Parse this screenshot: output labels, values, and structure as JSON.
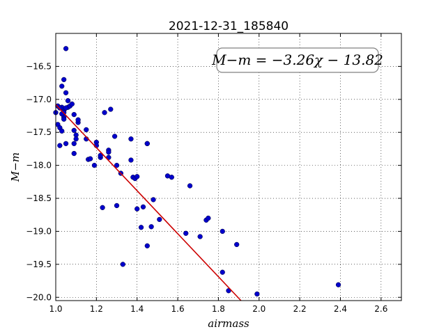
{
  "chart_data": {
    "type": "scatter",
    "title": "2021-12-31_185840",
    "xlabel": "airmass",
    "ylabel": "M−m",
    "xlim": [
      1.0,
      2.7
    ],
    "ylim": [
      -20.05,
      -16.0
    ],
    "y_inverted": true,
    "grid": true,
    "x_ticks": [
      1.0,
      1.2,
      1.4,
      1.6,
      1.8,
      2.0,
      2.2,
      2.4,
      2.6
    ],
    "x_tick_labels": [
      "1.0",
      "1.2",
      "1.4",
      "1.6",
      "1.8",
      "2.0",
      "2.2",
      "2.4",
      "2.6"
    ],
    "y_ticks": [
      -16.5,
      -17.0,
      -17.5,
      -18.0,
      -18.5,
      -19.0,
      -19.5,
      -20.0
    ],
    "y_tick_labels": [
      "−16.5",
      "−17.0",
      "−17.5",
      "−18.0",
      "−18.5",
      "−19.0",
      "−19.5",
      "−20.0"
    ],
    "annotation": "M−m = −3.26χ − 13.82",
    "fit": {
      "slope": -3.26,
      "intercept": -13.82,
      "color": "#cc0000"
    },
    "marker_color": "#0000cc",
    "points": [
      [
        1.05,
        -16.23
      ],
      [
        1.04,
        -16.7
      ],
      [
        1.05,
        -16.9
      ],
      [
        1.03,
        -16.8
      ],
      [
        1.06,
        -17.02
      ],
      [
        1.06,
        -17.12
      ],
      [
        1.07,
        -17.1
      ],
      [
        1.08,
        -17.07
      ],
      [
        1.04,
        -17.17
      ],
      [
        1.03,
        -17.12
      ],
      [
        1.04,
        -17.2
      ],
      [
        1.04,
        -17.27
      ],
      [
        1.05,
        -17.13
      ],
      [
        1.04,
        -17.3
      ],
      [
        1.03,
        -17.22
      ],
      [
        1.0,
        -17.2
      ],
      [
        1.01,
        -17.1
      ],
      [
        1.02,
        -17.13
      ],
      [
        1.09,
        -17.23
      ],
      [
        1.11,
        -17.35
      ],
      [
        1.11,
        -17.31
      ],
      [
        1.09,
        -17.47
      ],
      [
        1.1,
        -17.54
      ],
      [
        1.01,
        -17.38
      ],
      [
        1.02,
        -17.43
      ],
      [
        1.03,
        -17.48
      ],
      [
        1.05,
        -17.67
      ],
      [
        1.02,
        -17.7
      ],
      [
        1.09,
        -17.67
      ],
      [
        1.09,
        -17.82
      ],
      [
        1.1,
        -17.6
      ],
      [
        1.15,
        -17.46
      ],
      [
        1.15,
        -17.6
      ],
      [
        1.16,
        -17.91
      ],
      [
        1.17,
        -17.9
      ],
      [
        1.19,
        -18.0
      ],
      [
        1.2,
        -17.65
      ],
      [
        1.2,
        -17.7
      ],
      [
        1.22,
        -17.88
      ],
      [
        1.22,
        -17.85
      ],
      [
        1.24,
        -17.2
      ],
      [
        1.26,
        -17.77
      ],
      [
        1.26,
        -17.8
      ],
      [
        1.26,
        -17.88
      ],
      [
        1.27,
        -17.15
      ],
      [
        1.29,
        -17.56
      ],
      [
        1.3,
        -18.0
      ],
      [
        1.32,
        -18.12
      ],
      [
        1.23,
        -18.64
      ],
      [
        1.3,
        -18.61
      ],
      [
        1.33,
        -19.5
      ],
      [
        1.37,
        -17.6
      ],
      [
        1.37,
        -17.92
      ],
      [
        1.38,
        -18.18
      ],
      [
        1.39,
        -18.2
      ],
      [
        1.4,
        -18.17
      ],
      [
        1.4,
        -18.66
      ],
      [
        1.42,
        -18.94
      ],
      [
        1.43,
        -18.63
      ],
      [
        1.45,
        -17.67
      ],
      [
        1.45,
        -17.67
      ],
      [
        1.45,
        -19.22
      ],
      [
        1.47,
        -18.93
      ],
      [
        1.48,
        -18.52
      ],
      [
        1.51,
        -18.82
      ],
      [
        1.55,
        -18.16
      ],
      [
        1.57,
        -18.18
      ],
      [
        1.64,
        -19.03
      ],
      [
        1.66,
        -18.31
      ],
      [
        1.71,
        -19.08
      ],
      [
        1.74,
        -18.83
      ],
      [
        1.75,
        -18.8
      ],
      [
        1.82,
        -19.0
      ],
      [
        1.82,
        -19.62
      ],
      [
        1.85,
        -19.9
      ],
      [
        1.89,
        -19.2
      ],
      [
        1.99,
        -19.95
      ],
      [
        2.39,
        -19.81
      ]
    ]
  }
}
